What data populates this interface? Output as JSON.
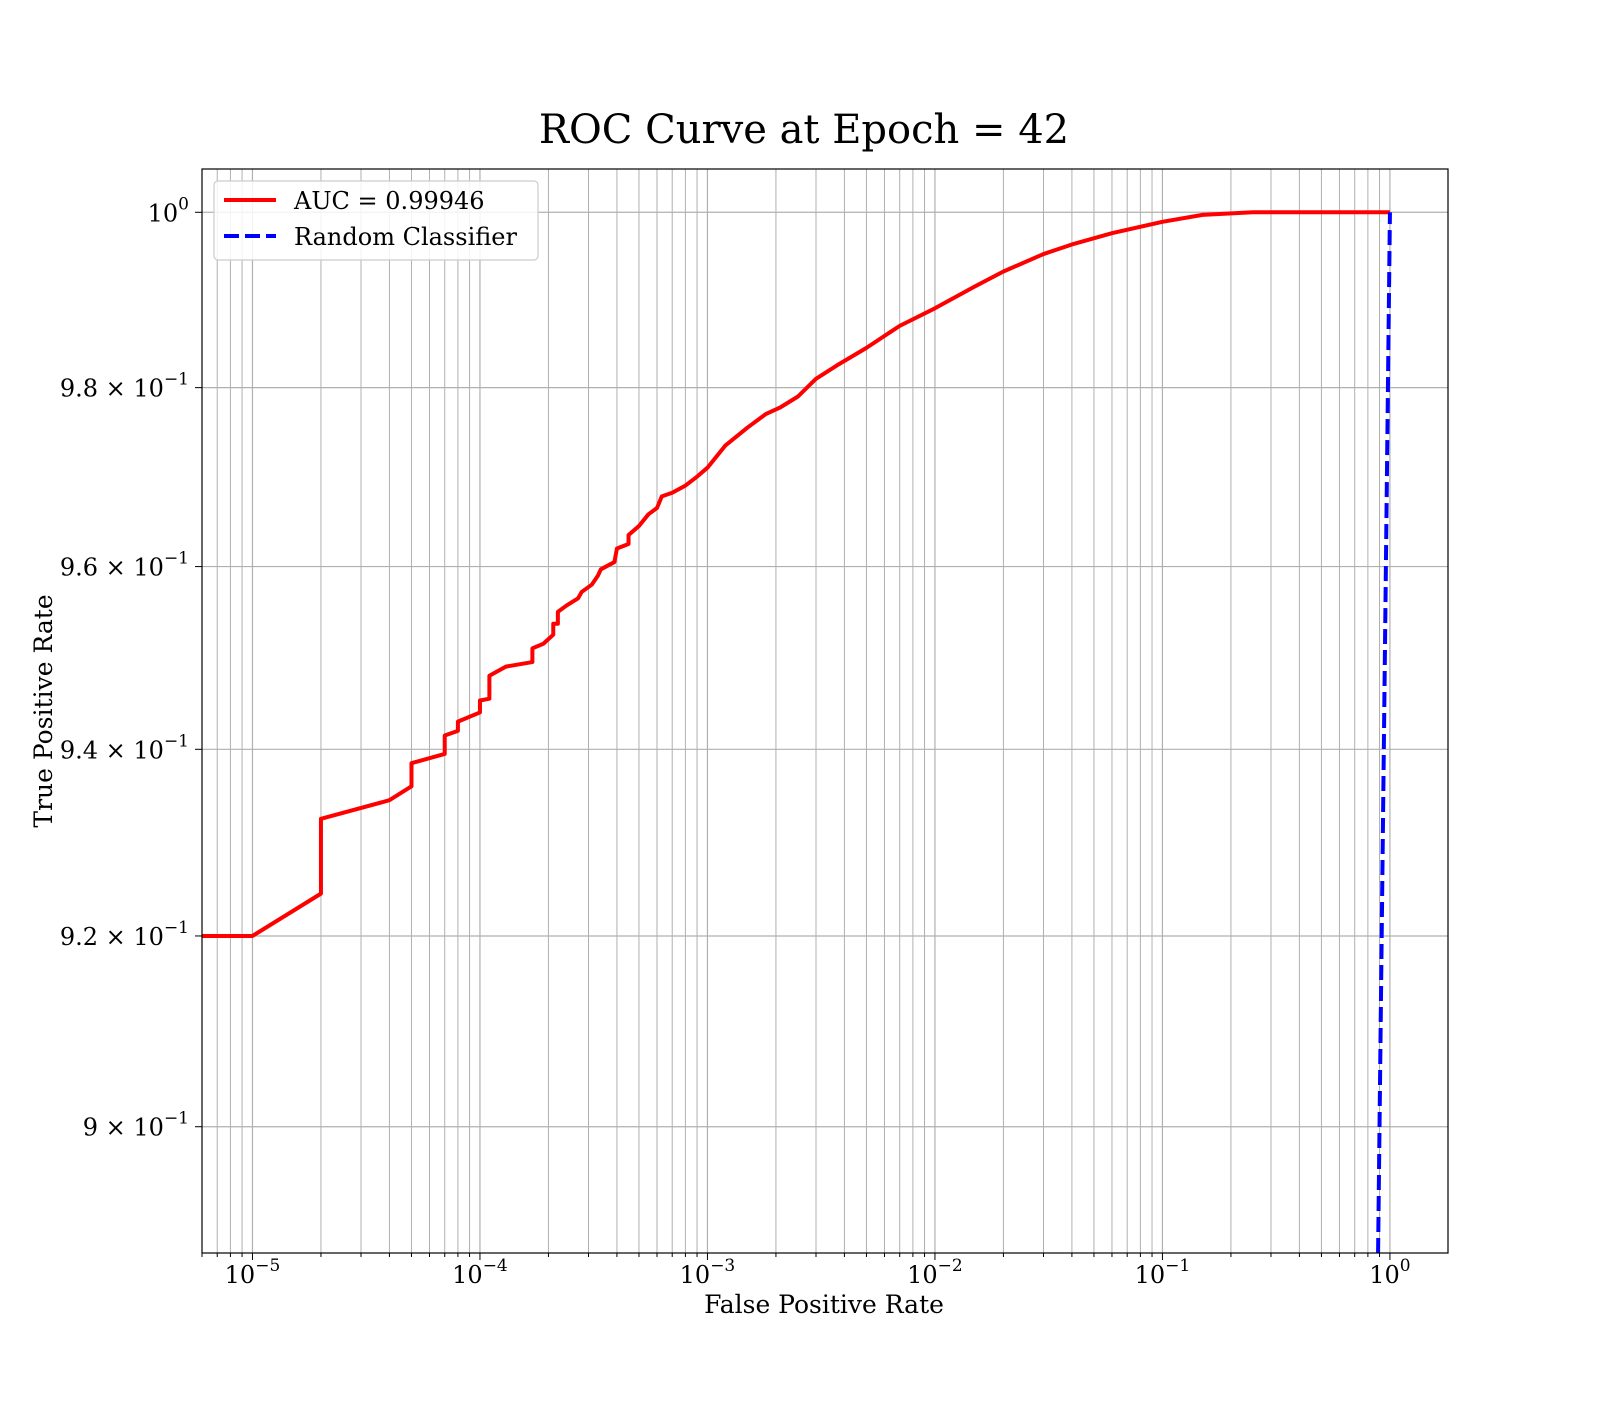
{
  "chart_data": {
    "type": "line",
    "title": "ROC Curve at Epoch = 42",
    "xlabel": "False Positive Rate",
    "ylabel": "True Positive Rate",
    "xscale": "log",
    "yscale": "log",
    "xlim": [
      6e-06,
      1.8
    ],
    "ylim": [
      0.887,
      1.005
    ],
    "grid": true,
    "legend_position": "top-left",
    "x_ticks": [
      {
        "value": 1e-05,
        "base": "10",
        "exp": "−5"
      },
      {
        "value": 0.0001,
        "base": "10",
        "exp": "−4"
      },
      {
        "value": 0.001,
        "base": "10",
        "exp": "−3"
      },
      {
        "value": 0.01,
        "base": "10",
        "exp": "−2"
      },
      {
        "value": 0.1,
        "base": "10",
        "exp": "−1"
      },
      {
        "value": 1,
        "base": "10",
        "exp": "0"
      }
    ],
    "y_ticks": [
      {
        "value": 1.0,
        "base": "10",
        "exp": "0"
      },
      {
        "value": 0.98,
        "base": "9.8 × 10",
        "exp": "−1"
      },
      {
        "value": 0.96,
        "base": "9.6 × 10",
        "exp": "−1"
      },
      {
        "value": 0.94,
        "base": "9.4 × 10",
        "exp": "−1"
      },
      {
        "value": 0.92,
        "base": "9.2 × 10",
        "exp": "−1"
      },
      {
        "value": 0.9,
        "base": "9 × 10",
        "exp": "−1"
      }
    ],
    "series": [
      {
        "name": "AUC = 0.99946",
        "color": "#ff0000",
        "dash": "solid",
        "points": [
          [
            6e-06,
            0.92
          ],
          [
            1e-05,
            0.92
          ],
          [
            2e-05,
            0.9245
          ],
          [
            2e-05,
            0.9325
          ],
          [
            4e-05,
            0.9345
          ],
          [
            5e-05,
            0.936
          ],
          [
            5e-05,
            0.9385
          ],
          [
            7e-05,
            0.9395
          ],
          [
            7e-05,
            0.9415
          ],
          [
            8e-05,
            0.942
          ],
          [
            8e-05,
            0.943
          ],
          [
            0.0001,
            0.944
          ],
          [
            0.0001,
            0.9453
          ],
          [
            0.00011,
            0.9455
          ],
          [
            0.00011,
            0.948
          ],
          [
            0.00013,
            0.949
          ],
          [
            0.00017,
            0.9495
          ],
          [
            0.00017,
            0.951
          ],
          [
            0.00019,
            0.9515
          ],
          [
            0.00021,
            0.9525
          ],
          [
            0.00021,
            0.9537
          ],
          [
            0.00022,
            0.9537
          ],
          [
            0.00022,
            0.955
          ],
          [
            0.00024,
            0.9557
          ],
          [
            0.00027,
            0.9565
          ],
          [
            0.00028,
            0.9572
          ],
          [
            0.00031,
            0.958
          ],
          [
            0.00033,
            0.959
          ],
          [
            0.00034,
            0.9597
          ],
          [
            0.00039,
            0.9605
          ],
          [
            0.0004,
            0.962
          ],
          [
            0.00045,
            0.9625
          ],
          [
            0.00045,
            0.9635
          ],
          [
            0.0005,
            0.9645
          ],
          [
            0.00055,
            0.9658
          ],
          [
            0.0006,
            0.9665
          ],
          [
            0.00063,
            0.9678
          ],
          [
            0.0007,
            0.9682
          ],
          [
            0.0008,
            0.969
          ],
          [
            0.0009,
            0.97
          ],
          [
            0.001,
            0.971
          ],
          [
            0.0012,
            0.9735
          ],
          [
            0.0015,
            0.9755
          ],
          [
            0.0018,
            0.977
          ],
          [
            0.0021,
            0.9778
          ],
          [
            0.0025,
            0.979
          ],
          [
            0.003,
            0.981
          ],
          [
            0.0037,
            0.9825
          ],
          [
            0.005,
            0.9845
          ],
          [
            0.007,
            0.987
          ],
          [
            0.01,
            0.989
          ],
          [
            0.015,
            0.9915
          ],
          [
            0.02,
            0.9932
          ],
          [
            0.03,
            0.9952
          ],
          [
            0.04,
            0.9963
          ],
          [
            0.06,
            0.9976
          ],
          [
            0.1,
            0.9989
          ],
          [
            0.15,
            0.9997
          ],
          [
            0.25,
            1.0
          ],
          [
            1.0,
            1.0
          ]
        ]
      },
      {
        "name": "Random Classifier",
        "color": "#0000ff",
        "dash": "dashed",
        "points": [
          [
            0.887,
            0.887
          ],
          [
            1.0,
            1.0
          ]
        ]
      }
    ]
  }
}
